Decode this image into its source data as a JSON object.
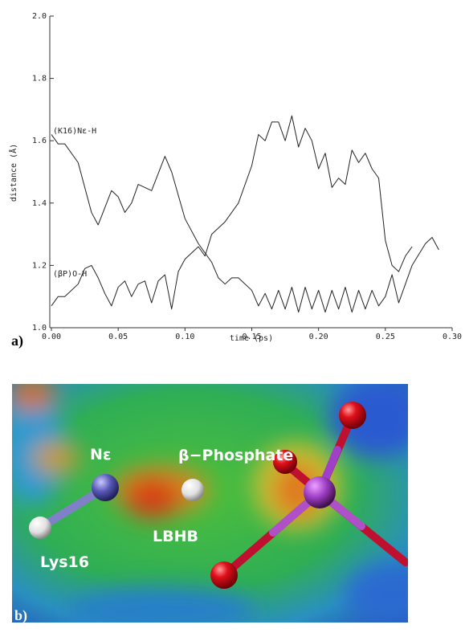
{
  "chart_data": {
    "type": "line",
    "x_label": "time (ps)",
    "y_label": "distance (Å)",
    "xlim": [
      0,
      0.3
    ],
    "ylim": [
      1.0,
      2.0
    ],
    "xticks": [
      {
        "value": 0,
        "label": "0.00"
      },
      {
        "value": 0.05,
        "label": "0.05"
      },
      {
        "value": 0.1,
        "label": "0.10"
      },
      {
        "value": 0.15,
        "label": "0.15"
      },
      {
        "value": 0.2,
        "label": "0.20"
      },
      {
        "value": 0.25,
        "label": "0.25"
      },
      {
        "value": 0.3,
        "label": "0.30"
      }
    ],
    "yticks": [
      {
        "value": 1,
        "label": "1.0"
      },
      1.2,
      1.4,
      1.6,
      1.8,
      {
        "value": 2,
        "label": "2.0"
      }
    ],
    "annotations": [
      "(K16)Nε-H",
      "(βP)O-H"
    ],
    "series": [
      {
        "name": "(K16)Nε-H",
        "color": "#222222",
        "x": [
          0,
          0.005,
          0.01,
          0.02,
          0.03,
          0.035,
          0.045,
          0.05,
          0.055,
          0.06,
          0.065,
          0.07,
          0.075,
          0.085,
          0.09,
          0.1,
          0.11,
          0.12,
          0.125,
          0.13,
          0.135,
          0.14,
          0.15,
          0.155,
          0.16,
          0.165,
          0.17,
          0.175,
          0.18,
          0.185,
          0.19,
          0.195,
          0.2,
          0.205,
          0.21,
          0.215,
          0.22,
          0.225,
          0.23,
          0.235,
          0.24,
          0.245,
          0.25,
          0.255,
          0.26,
          0.27,
          0.28,
          0.285,
          0.29
        ],
        "values": [
          1.62,
          1.59,
          1.59,
          1.53,
          1.37,
          1.33,
          1.44,
          1.42,
          1.37,
          1.4,
          1.46,
          1.45,
          1.44,
          1.55,
          1.5,
          1.35,
          1.27,
          1.21,
          1.16,
          1.14,
          1.16,
          1.16,
          1.12,
          1.07,
          1.11,
          1.06,
          1.12,
          1.06,
          1.13,
          1.05,
          1.13,
          1.06,
          1.12,
          1.05,
          1.12,
          1.06,
          1.13,
          1.05,
          1.12,
          1.06,
          1.12,
          1.07,
          1.1,
          1.17,
          1.08,
          1.2,
          1.27,
          1.29,
          1.25
        ]
      },
      {
        "name": "(βP)O-H",
        "color": "#222222",
        "x": [
          0,
          0.005,
          0.01,
          0.02,
          0.025,
          0.03,
          0.035,
          0.04,
          0.045,
          0.05,
          0.055,
          0.06,
          0.065,
          0.07,
          0.075,
          0.08,
          0.085,
          0.09,
          0.095,
          0.1,
          0.105,
          0.11,
          0.115,
          0.12,
          0.13,
          0.14,
          0.15,
          0.155,
          0.16,
          0.165,
          0.17,
          0.175,
          0.18,
          0.185,
          0.19,
          0.195,
          0.2,
          0.205,
          0.21,
          0.215,
          0.22,
          0.225,
          0.23,
          0.235,
          0.24,
          0.245,
          0.25,
          0.255,
          0.26,
          0.265,
          0.27
        ],
        "values": [
          1.07,
          1.1,
          1.1,
          1.14,
          1.19,
          1.2,
          1.16,
          1.11,
          1.07,
          1.13,
          1.15,
          1.1,
          1.14,
          1.15,
          1.08,
          1.15,
          1.17,
          1.06,
          1.18,
          1.22,
          1.24,
          1.26,
          1.23,
          1.3,
          1.34,
          1.4,
          1.52,
          1.62,
          1.6,
          1.66,
          1.66,
          1.6,
          1.68,
          1.58,
          1.64,
          1.6,
          1.51,
          1.56,
          1.45,
          1.48,
          1.46,
          1.57,
          1.53,
          1.56,
          1.51,
          1.48,
          1.28,
          1.2,
          1.18,
          1.23,
          1.26
        ]
      }
    ]
  },
  "figure": {
    "panel_a": "a)",
    "panel_b": "b)",
    "labels": {
      "n_epsilon": "Nε",
      "phosphate": "β−Phosphate",
      "lbhb": "LBHB",
      "lys16": "Lys16"
    }
  }
}
